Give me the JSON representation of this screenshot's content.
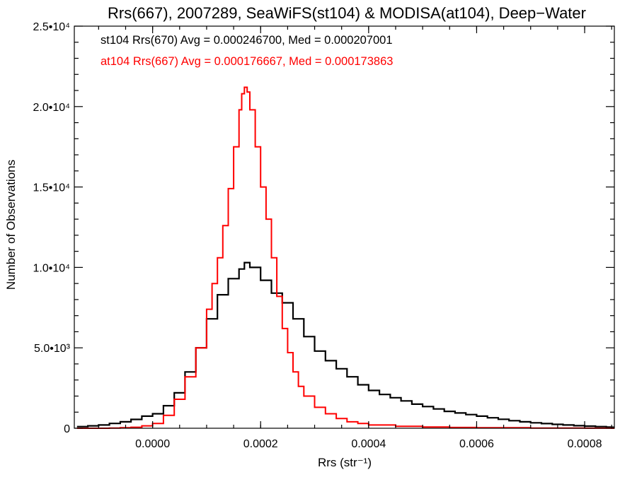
{
  "chart_data": {
    "type": "line",
    "title": "Rrs(667), 2007289, SeaWiFS(st104) & MODISA(at104), Deep−Water",
    "xlabel": "Rrs (str⁻¹)",
    "ylabel": "Number of Observations",
    "xlim": [
      -0.000145,
      0.000855
    ],
    "ylim": [
      0,
      25000
    ],
    "xticks": [
      0.0,
      0.0002,
      0.0004,
      0.0006,
      0.0008
    ],
    "xtick_labels": [
      "0.0000",
      "0.0002",
      "0.0004",
      "0.0006",
      "0.0008"
    ],
    "yticks": [
      0,
      5000,
      10000,
      15000,
      20000,
      25000
    ],
    "ytick_labels": [
      "0",
      "5.0•10³",
      "1.0•10⁴",
      "1.5•10⁴",
      "2.0•10⁴",
      "2.5•10⁴"
    ],
    "grid": false,
    "legend_position": "top-left",
    "legend": [
      "st104 Rrs(670) Avg = 0.000246700, Med = 0.000207001",
      "at104 Rrs(667) Avg = 0.000176667, Med = 0.000173863"
    ],
    "series": [
      {
        "name": "st104 Rrs(670)",
        "color": "#000000",
        "style": "step",
        "x": [
          -0.00014,
          -0.00012,
          -0.0001,
          -8e-05,
          -6e-05,
          -4e-05,
          -2e-05,
          0.0,
          2e-05,
          4e-05,
          6e-05,
          8e-05,
          0.0001,
          0.00012,
          0.00014,
          0.00016,
          0.00017,
          0.00018,
          0.0002,
          0.00022,
          0.00024,
          0.00026,
          0.00028,
          0.0003,
          0.00032,
          0.00034,
          0.00036,
          0.00038,
          0.0004,
          0.00042,
          0.00044,
          0.00046,
          0.00048,
          0.0005,
          0.00052,
          0.00054,
          0.00056,
          0.00058,
          0.0006,
          0.00062,
          0.00064,
          0.00066,
          0.00068,
          0.0007,
          0.00072,
          0.00074,
          0.00076,
          0.00078,
          0.0008,
          0.00082,
          0.00084,
          0.00085
        ],
        "y": [
          100,
          150,
          200,
          300,
          400,
          550,
          750,
          900,
          1400,
          2200,
          3500,
          5000,
          6800,
          8300,
          9300,
          9900,
          10300,
          10000,
          9200,
          8400,
          7800,
          6800,
          5700,
          4800,
          4200,
          3700,
          3200,
          2700,
          2350,
          2100,
          1900,
          1700,
          1500,
          1350,
          1200,
          1050,
          950,
          850,
          750,
          650,
          560,
          470,
          400,
          340,
          290,
          240,
          200,
          160,
          130,
          100,
          70,
          60
        ]
      },
      {
        "name": "at104 Rrs(667)",
        "color": "#ff0000",
        "style": "step",
        "x": [
          -0.00014,
          -0.00012,
          -0.0001,
          -8e-05,
          -6e-05,
          -4e-05,
          -2e-05,
          0.0,
          2e-05,
          4e-05,
          6e-05,
          8e-05,
          0.0001,
          0.00011,
          0.00012,
          0.00013,
          0.00014,
          0.00015,
          0.00016,
          0.000165,
          0.00017,
          0.000175,
          0.00018,
          0.00019,
          0.0002,
          0.00021,
          0.00022,
          0.00023,
          0.00024,
          0.00025,
          0.00026,
          0.00027,
          0.00028,
          0.0003,
          0.00032,
          0.00034,
          0.00036,
          0.00038,
          0.0004,
          0.00045,
          0.0005,
          0.00055,
          0.0006,
          0.0007,
          0.0008,
          0.00085
        ],
        "y": [
          0,
          0,
          0,
          10,
          30,
          60,
          150,
          300,
          800,
          1800,
          3200,
          5000,
          7400,
          9000,
          10600,
          12600,
          14900,
          17500,
          19800,
          20800,
          21200,
          20900,
          19800,
          17500,
          15000,
          13000,
          10600,
          8200,
          6200,
          4700,
          3500,
          2600,
          2000,
          1300,
          900,
          600,
          400,
          300,
          200,
          120,
          80,
          50,
          30,
          15,
          5,
          0
        ]
      }
    ]
  }
}
